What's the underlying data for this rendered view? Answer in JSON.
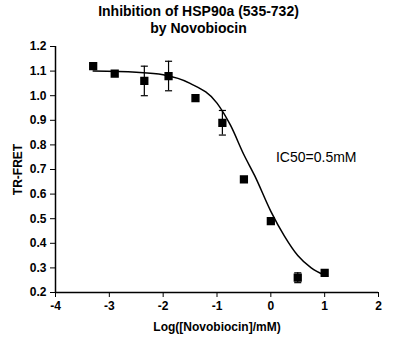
{
  "chart_data": {
    "type": "scatter",
    "title": "Inhibition of HSP90a (535-732)\nby Novobiocin",
    "x_label": "Log([Novobiocin]/mM)",
    "y_label": "TR-FRET",
    "annotation": "IC50=0.5mM",
    "x": [
      -3.3,
      -2.9,
      -2.35,
      -1.9,
      -1.4,
      -0.9,
      -0.5,
      0.0,
      0.5,
      1.0
    ],
    "values": [
      1.12,
      1.09,
      1.06,
      1.08,
      0.99,
      0.89,
      0.66,
      0.49,
      0.26,
      0.28
    ],
    "errors": [
      null,
      null,
      0.06,
      0.06,
      null,
      0.05,
      null,
      null,
      0.02,
      null
    ],
    "marker": "square",
    "color": "#000000",
    "fit": {
      "type": "line",
      "line_style": "solid",
      "x": [
        -3.3,
        -2.5,
        -2.0,
        -1.5,
        -1.0,
        -0.75,
        -0.5,
        -0.3,
        0.0,
        0.25,
        0.5,
        0.75,
        1.0
      ],
      "values": [
        1.1,
        1.095,
        1.085,
        1.05,
        0.97,
        0.88,
        0.76,
        0.675,
        0.53,
        0.43,
        0.35,
        0.3,
        0.27
      ]
    },
    "xlim": [
      -4,
      2
    ],
    "xticks": [
      -4,
      -3,
      -2,
      -1,
      0,
      1,
      2
    ],
    "ylim": [
      0.2,
      1.2
    ],
    "yticks": [
      0.2,
      0.3,
      0.4,
      0.5,
      0.6,
      0.7,
      0.8,
      0.9,
      {
        "value": 1,
        "label": "1.0"
      },
      1.1,
      1.2
    ],
    "grid": false
  }
}
